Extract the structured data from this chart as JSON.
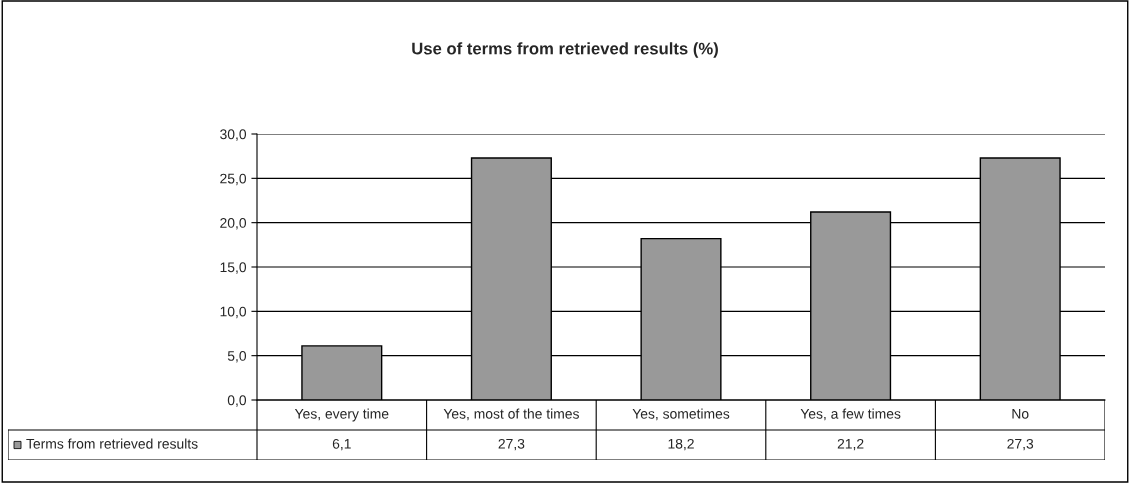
{
  "chart_data": {
    "type": "bar",
    "title": "Use of terms from retrieved results (%)",
    "categories": [
      "Yes, every time",
      "Yes, most of the times",
      "Yes, sometimes",
      "Yes, a few times",
      "No"
    ],
    "series": [
      {
        "name": "Terms from retrieved results",
        "color": "#999999",
        "values": [
          6.1,
          27.3,
          18.2,
          21.2,
          27.3
        ],
        "value_labels": [
          "6,1",
          "27,3",
          "18,2",
          "21,2",
          "27,3"
        ]
      }
    ],
    "ylim": [
      0,
      30
    ],
    "yticks": [
      {
        "value": 0,
        "label": "0,0"
      },
      {
        "value": 5,
        "label": "5,0"
      },
      {
        "value": 10,
        "label": "10,0"
      },
      {
        "value": 15,
        "label": "15,0"
      },
      {
        "value": 20,
        "label": "20,0"
      },
      {
        "value": 25,
        "label": "25,0"
      },
      {
        "value": 30,
        "label": "30,0"
      }
    ],
    "grid": "y",
    "legend": "bottom"
  }
}
